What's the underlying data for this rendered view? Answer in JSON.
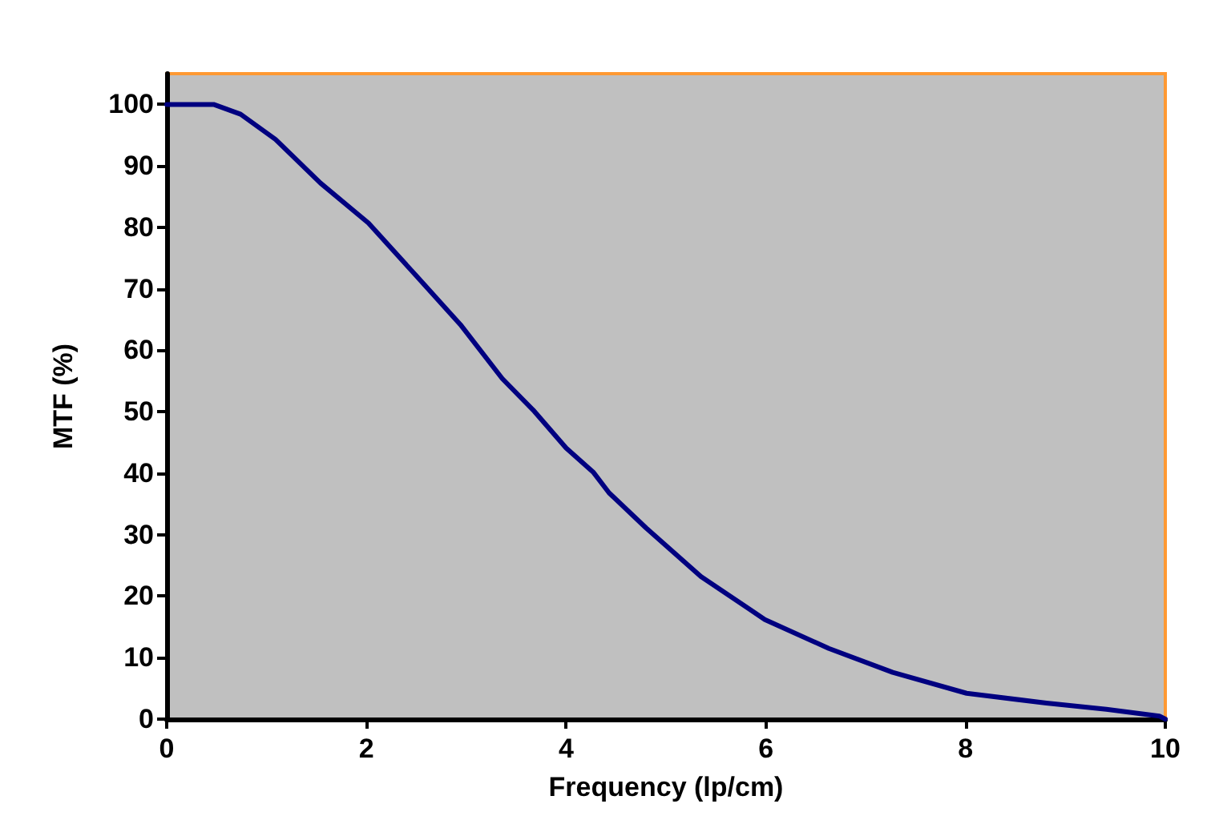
{
  "chart_data": {
    "type": "line",
    "xlabel": "Frequency (lp/cm)",
    "ylabel": "MTF (%)",
    "x": [
      0,
      0.47,
      0.74,
      1.09,
      1.54,
      2.02,
      2.5,
      2.94,
      3.36,
      3.68,
      4.0,
      4.27,
      4.43,
      4.8,
      5.35,
      5.99,
      6.63,
      7.27,
      8.01,
      8.81,
      9.41,
      9.94,
      10
    ],
    "series": [
      {
        "color": "#000080",
        "values": [
          100,
          100,
          98.4,
          94.3,
          87.2,
          80.7,
          72.1,
          64.2,
          55.4,
          50.1,
          44.1,
          40.2,
          36.8,
          31.1,
          23.2,
          16.2,
          11.5,
          7.6,
          4.2,
          2.6,
          1.6,
          0.5,
          0
        ]
      }
    ],
    "xlim": [
      0,
      10
    ],
    "xticks": [
      0,
      2,
      4,
      6,
      8,
      10
    ],
    "ylim": [
      0,
      105
    ],
    "yticks": [
      0,
      10,
      20,
      30,
      40,
      50,
      60,
      70,
      80,
      90,
      100
    ],
    "marker": "none",
    "line_style": "solid"
  }
}
